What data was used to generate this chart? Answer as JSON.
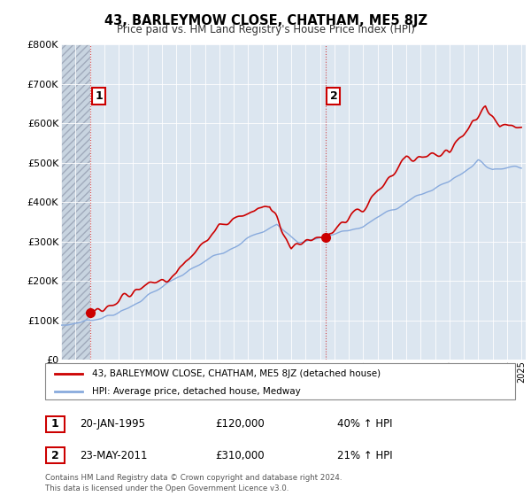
{
  "title": "43, BARLEYMOW CLOSE, CHATHAM, ME5 8JZ",
  "subtitle": "Price paid vs. HM Land Registry's House Price Index (HPI)",
  "sale1_year": 1995.05,
  "sale1_price": 120000,
  "sale2_year": 2011.38,
  "sale2_price": 310000,
  "ylim": [
    0,
    800000
  ],
  "yticks": [
    0,
    100000,
    200000,
    300000,
    400000,
    500000,
    600000,
    700000,
    800000
  ],
  "ytick_labels": [
    "£0",
    "£100K",
    "£200K",
    "£300K",
    "£400K",
    "£500K",
    "£600K",
    "£700K",
    "£800K"
  ],
  "line_color_price": "#cc0000",
  "line_color_hpi": "#88aadd",
  "legend_label_price": "43, BARLEYMOW CLOSE, CHATHAM, ME5 8JZ (detached house)",
  "legend_label_hpi": "HPI: Average price, detached house, Medway",
  "footer": "Contains HM Land Registry data © Crown copyright and database right 2024.\nThis data is licensed under the Open Government Licence v3.0.",
  "table_data": [
    [
      "1",
      "20-JAN-1995",
      "£120,000",
      "40% ↑ HPI"
    ],
    [
      "2",
      "23-MAY-2011",
      "£310,000",
      "21% ↑ HPI"
    ]
  ],
  "hatch_end_year": 1995.05,
  "xmin": 1993.0,
  "xmax": 2025.3,
  "plot_bg_color": "#dce6f0",
  "hatch_bg_color": "#c8d0dc",
  "grid_color": "#b0bcd0",
  "white_grid": "#ffffff"
}
